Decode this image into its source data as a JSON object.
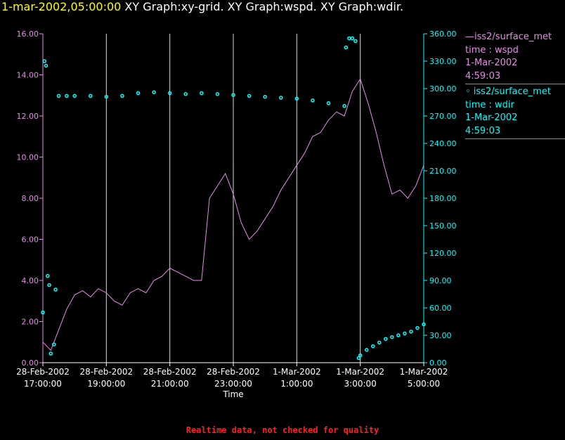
{
  "header": {
    "timestamp": "1-mar-2002,05:00:00",
    "graphs": " XY Graph:xy-grid.  XY Graph:wspd.  XY Graph:wdir."
  },
  "legend": {
    "items": [
      {
        "line1": "—iss2/surface_met",
        "line2": "time : wspd",
        "line3": "1-Mar-2002",
        "line4": "4:59:03",
        "color": "#e58ee5"
      },
      {
        "line1": "◦ iss2/surface_met",
        "line2": "time : wdir",
        "line3": "1-Mar-2002",
        "line4": "4:59:03",
        "color": "#00ffff"
      }
    ]
  },
  "footer": {
    "note": "Realtime data, not checked for quality"
  },
  "colors": {
    "wspd": "#e58ee5",
    "wdir": "#00ffff",
    "grid": "#ffffff",
    "axis_text": "#ffffff"
  },
  "chart_data": {
    "type": "line",
    "xlabel": "Time",
    "x_tick_labels": [
      [
        "28-Feb-2002",
        "17:00:00"
      ],
      [
        "28-Feb-2002",
        "19:00:00"
      ],
      [
        "28-Feb-2002",
        "21:00:00"
      ],
      [
        "28-Feb-2002",
        "23:00:00"
      ],
      [
        "1-Mar-2002",
        "1:00:00"
      ],
      [
        "1-Mar-2002",
        "3:00:00"
      ],
      [
        "1-Mar-2002",
        "5:00:00"
      ]
    ],
    "x_tick_hours": [
      17,
      19,
      21,
      23,
      25,
      27,
      29
    ],
    "xlim_hours": [
      17,
      29
    ],
    "left_axis": {
      "ylim": [
        0,
        16
      ],
      "ticks": [
        "0.00",
        "2.00",
        "4.00",
        "6.00",
        "8.00",
        "10.00",
        "12.00",
        "14.00",
        "16.00"
      ]
    },
    "right_axis": {
      "ylim": [
        0,
        360
      ],
      "ticks": [
        "0.00",
        "30.00",
        "60.00",
        "90.00",
        "120.00",
        "150.00",
        "180.00",
        "210.00",
        "240.00",
        "270.00",
        "300.00",
        "330.00",
        "360.00"
      ]
    },
    "grid": "vertical",
    "series": [
      {
        "name": "iss2/surface_met time : wspd",
        "axis": "left",
        "style": "line",
        "x": [
          17.0,
          17.25,
          17.5,
          17.75,
          18.0,
          18.25,
          18.5,
          18.75,
          19.0,
          19.25,
          19.5,
          19.75,
          20.0,
          20.25,
          20.5,
          20.75,
          21.0,
          21.25,
          21.5,
          21.75,
          22.0,
          22.25,
          22.5,
          22.75,
          23.0,
          23.25,
          23.5,
          23.75,
          24.0,
          24.25,
          24.5,
          24.75,
          25.0,
          25.25,
          25.5,
          25.75,
          26.0,
          26.25,
          26.5,
          26.75,
          27.0,
          27.25,
          27.5,
          27.75,
          28.0,
          28.25,
          28.5,
          28.75,
          29.0
        ],
        "y": [
          1.0,
          0.6,
          1.6,
          2.6,
          3.3,
          3.5,
          3.2,
          3.6,
          3.4,
          3.0,
          2.8,
          3.4,
          3.6,
          3.4,
          4.0,
          4.2,
          4.6,
          4.4,
          4.2,
          4.0,
          4.0,
          8.0,
          8.6,
          9.2,
          8.2,
          6.8,
          6.0,
          6.4,
          7.0,
          7.6,
          8.4,
          9.0,
          9.6,
          10.2,
          11.0,
          11.2,
          11.8,
          12.2,
          12.0,
          13.2,
          13.8,
          12.6,
          11.2,
          9.6,
          8.2,
          8.4,
          8.0,
          8.6,
          9.6
        ]
      },
      {
        "name": "iss2/surface_met time : wdir",
        "axis": "right",
        "style": "points",
        "x": [
          17.0,
          17.05,
          17.1,
          17.15,
          17.2,
          17.25,
          17.35,
          17.4,
          17.5,
          17.75,
          18.0,
          18.5,
          19.0,
          19.5,
          20.0,
          20.5,
          21.0,
          21.5,
          22.0,
          22.5,
          23.0,
          23.5,
          24.0,
          24.5,
          25.0,
          25.5,
          26.0,
          26.5,
          26.55,
          26.65,
          26.75,
          26.85,
          26.95,
          27.0,
          27.2,
          27.4,
          27.6,
          27.8,
          28.0,
          28.2,
          28.4,
          28.6,
          28.8,
          29.0
        ],
        "y": [
          55,
          330,
          325,
          95,
          85,
          10,
          20,
          80,
          292,
          292,
          292,
          292,
          291,
          292,
          295,
          296,
          295,
          294,
          295,
          294,
          293,
          292,
          291,
          290,
          289,
          287,
          284,
          281,
          345,
          355,
          355,
          352,
          5,
          8,
          14,
          18,
          22,
          26,
          28,
          30,
          32,
          34,
          38,
          42
        ]
      }
    ]
  }
}
